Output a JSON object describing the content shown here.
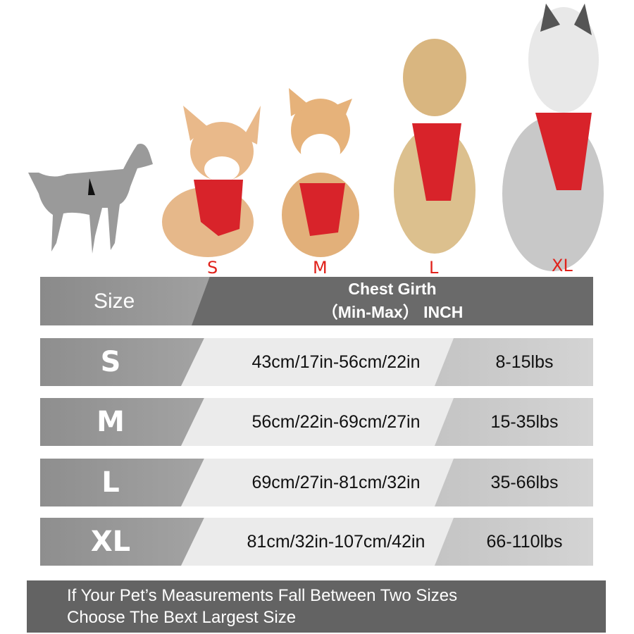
{
  "dog_labels": [
    "S",
    "M",
    "L",
    "XL"
  ],
  "header": {
    "size_label": "Size",
    "chest_line1": "Chest Girth",
    "chest_line2": "（Min-Max） INCH"
  },
  "rows": [
    {
      "size": "S",
      "chest": "43cm/17in-56cm/22in",
      "weight": "8-15lbs"
    },
    {
      "size": "M",
      "chest": "56cm/22in-69cm/27in",
      "weight": "15-35lbs"
    },
    {
      "size": "L",
      "chest": "69cm/27in-81cm/32in",
      "weight": "35-66lbs"
    },
    {
      "size": "XL",
      "chest": "81cm/32in-107cm/42in",
      "weight": "66-110lbs"
    }
  ],
  "footer": {
    "line1": "If Your Pet’s Measurements Fall Between Two Sizes",
    "line2": "Choose The Bext Largest Size"
  },
  "colors": {
    "label_red": "#e0221b",
    "harness_red": "#d8232a",
    "header_dark": "#6a6a6a",
    "footer": "#636363"
  }
}
